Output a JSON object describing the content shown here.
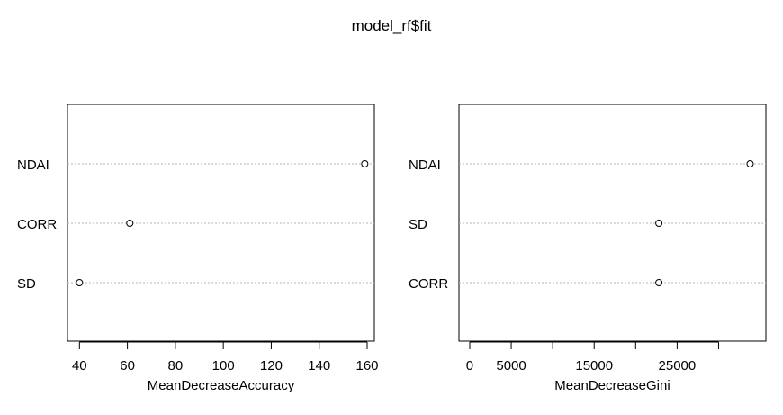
{
  "title": "model_rf$fit",
  "chart_data": [
    {
      "type": "scatter",
      "subtype": "dotchart",
      "xlabel": "MeanDecreaseAccuracy",
      "categories": [
        "NDAI",
        "CORR",
        "SD"
      ],
      "values": [
        159,
        61,
        40
      ],
      "xlim": [
        35,
        163
      ],
      "xticks": [
        40,
        60,
        80,
        100,
        120,
        140,
        160
      ],
      "xtick_labels": [
        "40",
        "60",
        "80",
        "100",
        "120",
        "140",
        "160"
      ],
      "grid": "dotted horizontal guides"
    },
    {
      "type": "scatter",
      "subtype": "dotchart",
      "xlabel": "MeanDecreaseGini",
      "categories": [
        "NDAI",
        "SD",
        "CORR"
      ],
      "values": [
        33800,
        22800,
        22800
      ],
      "xlim": [
        -1300,
        35700
      ],
      "xticks": [
        0,
        5000,
        10000,
        15000,
        20000,
        25000,
        30000
      ],
      "xtick_labels": [
        "0",
        "5000",
        "",
        "15000",
        "",
        "25000",
        ""
      ],
      "grid": "dotted horizontal guides"
    }
  ]
}
